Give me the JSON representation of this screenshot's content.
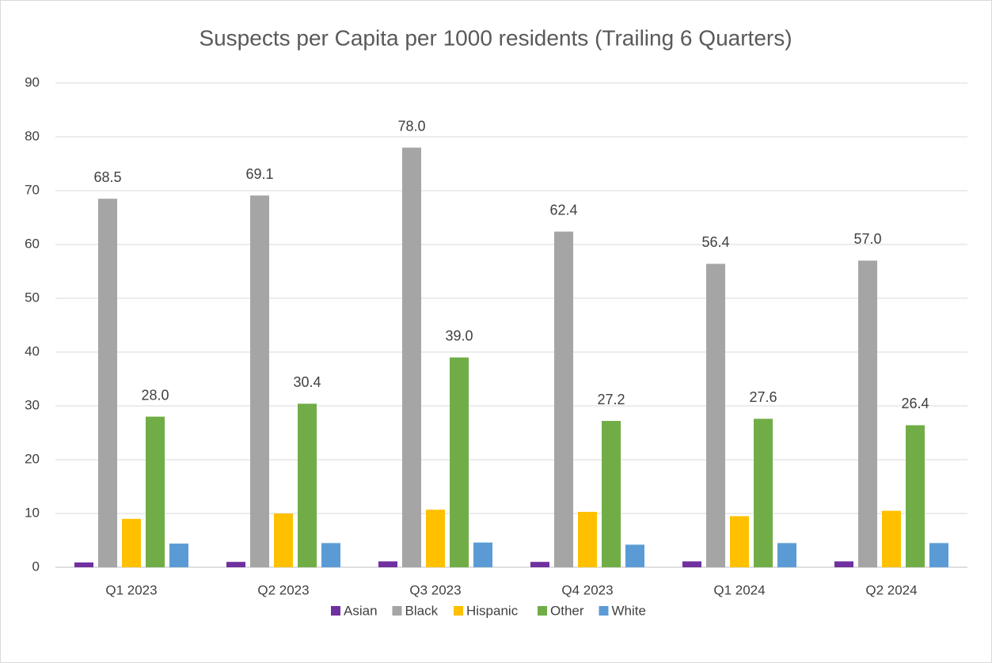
{
  "chart_data": {
    "type": "bar",
    "title": "Suspects per Capita per 1000 residents (Trailing 6 Quarters)",
    "categories": [
      "Q1 2023",
      "Q2 2023",
      "Q3 2023",
      "Q4 2023",
      "Q1 2024",
      "Q2 2024"
    ],
    "series": [
      {
        "name": "Asian",
        "color": "#7030a0",
        "values": [
          0.9,
          1.0,
          1.1,
          1.0,
          1.1,
          1.1
        ]
      },
      {
        "name": "Black",
        "color": "#a5a5a5",
        "values": [
          68.5,
          69.1,
          78.0,
          62.4,
          56.4,
          57.0
        ],
        "value_labels": [
          "68.5",
          "69.1",
          "78.0",
          "62.4",
          "56.4",
          "57.0"
        ]
      },
      {
        "name": "Hispanic",
        "color": "#ffc000",
        "values": [
          9.0,
          10.0,
          10.7,
          10.3,
          9.5,
          10.5
        ]
      },
      {
        "name": "Other",
        "color": "#70ad47",
        "values": [
          28.0,
          30.4,
          39.0,
          27.2,
          27.6,
          26.4
        ],
        "value_labels": [
          "28.0",
          "30.4",
          "39.0",
          "27.2",
          "27.6",
          "26.4"
        ]
      },
      {
        "name": "White",
        "color": "#5b9bd5",
        "values": [
          4.4,
          4.5,
          4.6,
          4.2,
          4.5,
          4.5
        ]
      }
    ],
    "ylim": [
      0,
      90
    ],
    "yticks": [
      0,
      10,
      20,
      30,
      40,
      50,
      60,
      70,
      80,
      90
    ],
    "grid": true,
    "legend": "bottom"
  }
}
